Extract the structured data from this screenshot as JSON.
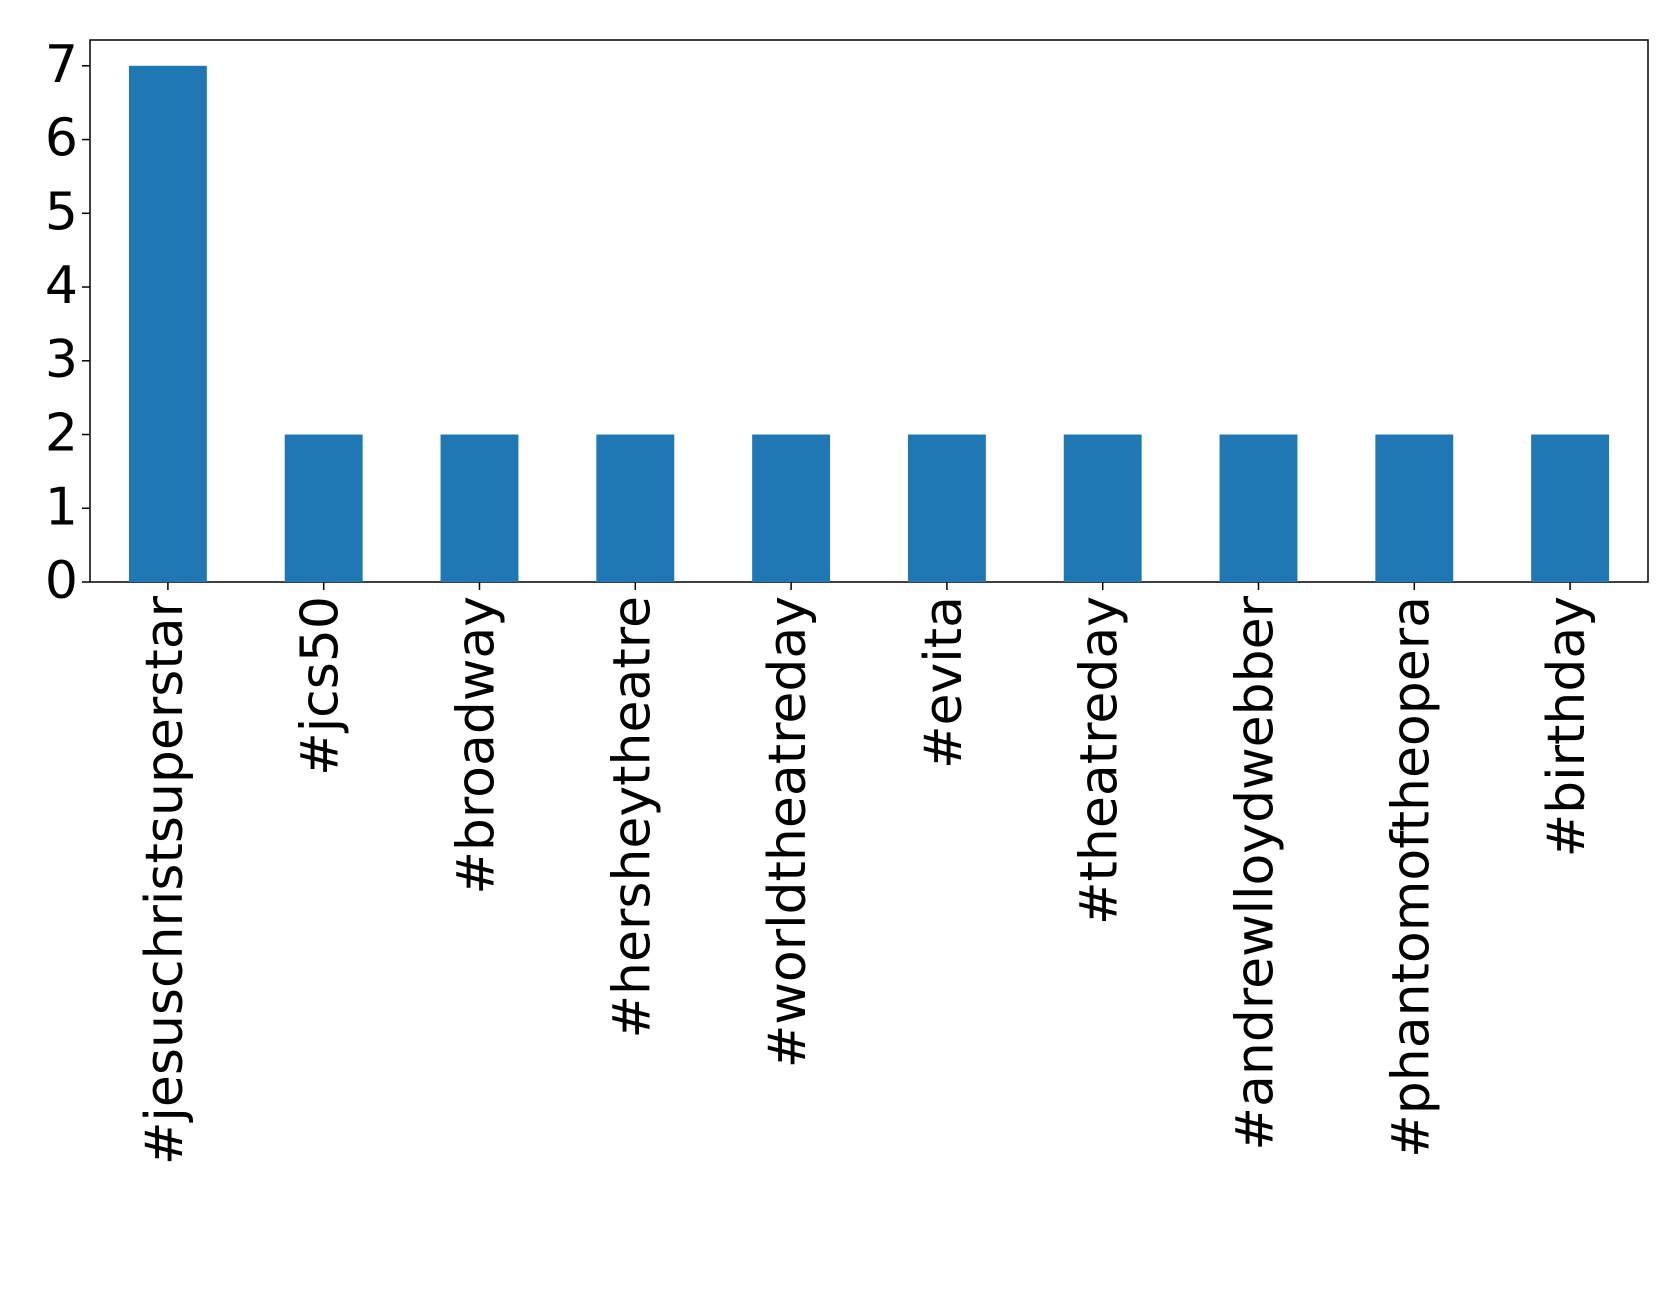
{
  "chart_data": {
    "type": "bar",
    "categories": [
      "#jesuschristsuperstar",
      "#jcs50",
      "#broadway",
      "#hersheytheatre",
      "#worldtheatreday",
      "#evita",
      "#theatreday",
      "#andrewlloydwebber",
      "#phantomoftheopera",
      "#birthday"
    ],
    "values": [
      7,
      2,
      2,
      2,
      2,
      2,
      2,
      2,
      2,
      2
    ],
    "color": "#1f77b4",
    "ylim": [
      0,
      7.35
    ],
    "yticks": [
      0,
      1,
      2,
      3,
      4,
      5,
      6,
      7
    ],
    "grid": false
  }
}
